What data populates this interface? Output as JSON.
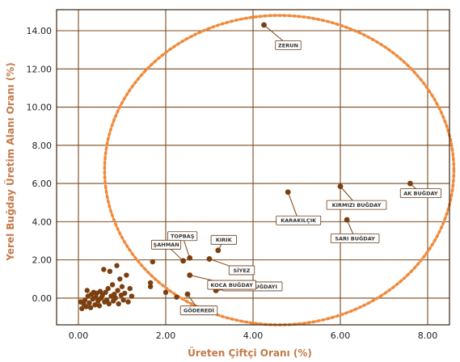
{
  "chart_data": {
    "type": "scatter",
    "title": "",
    "xlabel": "Üreten Çiftçi Oranı (%)",
    "ylabel": "Yerel Buğday Üretim Alanı Oranı (%)",
    "xlim": [
      -0.5,
      8.5
    ],
    "ylim": [
      -1.4,
      15.1
    ],
    "x_ticks": [
      0,
      2,
      4,
      6,
      8
    ],
    "x_tick_labels": [
      "0.00",
      "2.00",
      "4.00",
      "6.00",
      "8.00"
    ],
    "y_ticks": [
      0,
      2,
      4,
      6,
      8,
      10,
      12,
      14
    ],
    "y_tick_labels": [
      "0.00",
      "2.00",
      "4.00",
      "6.00",
      "8.00",
      "10.00",
      "12.00",
      "14.00"
    ],
    "grid": true,
    "colors": {
      "point": "#7b3f10",
      "grid": "#7b4a1e",
      "frame": "#3a2410",
      "ellipse": "#f08a3c",
      "axis_title": "#c47a4a"
    },
    "highlight_ellipse": {
      "center": [
        4.6,
        6.7
      ],
      "radius_x": 4.0,
      "radius_y": 8.1
    },
    "points": [
      {
        "x": 0.05,
        "y": -0.2
      },
      {
        "x": 0.08,
        "y": -0.55
      },
      {
        "x": 0.12,
        "y": -0.3
      },
      {
        "x": 0.15,
        "y": -0.1
      },
      {
        "x": 0.18,
        "y": -0.45
      },
      {
        "x": 0.2,
        "y": 0.4
      },
      {
        "x": 0.22,
        "y": 0.1
      },
      {
        "x": 0.25,
        "y": -0.25
      },
      {
        "x": 0.28,
        "y": -0.5
      },
      {
        "x": 0.3,
        "y": 0.2
      },
      {
        "x": 0.33,
        "y": -0.05
      },
      {
        "x": 0.35,
        "y": 0.3
      },
      {
        "x": 0.38,
        "y": -0.35
      },
      {
        "x": 0.4,
        "y": 0.05
      },
      {
        "x": 0.42,
        "y": 0.25
      },
      {
        "x": 0.45,
        "y": -0.15
      },
      {
        "x": 0.48,
        "y": -0.4
      },
      {
        "x": 0.5,
        "y": 0.35
      },
      {
        "x": 0.52,
        "y": 0.0
      },
      {
        "x": 0.55,
        "y": 0.15
      },
      {
        "x": 0.58,
        "y": 1.5
      },
      {
        "x": 0.6,
        "y": -0.2
      },
      {
        "x": 0.62,
        "y": 0.3
      },
      {
        "x": 0.65,
        "y": -0.1
      },
      {
        "x": 0.68,
        "y": 0.5
      },
      {
        "x": 0.7,
        "y": -0.3
      },
      {
        "x": 0.72,
        "y": 1.4
      },
      {
        "x": 0.75,
        "y": 0.1
      },
      {
        "x": 0.78,
        "y": 0.7
      },
      {
        "x": 0.8,
        "y": -0.15
      },
      {
        "x": 0.82,
        "y": 0.2
      },
      {
        "x": 0.85,
        "y": 0.0
      },
      {
        "x": 0.88,
        "y": 1.7
      },
      {
        "x": 0.9,
        "y": 0.4
      },
      {
        "x": 0.92,
        "y": -0.3
      },
      {
        "x": 0.95,
        "y": 1.0
      },
      {
        "x": 0.98,
        "y": 0.15
      },
      {
        "x": 1.0,
        "y": 0.6
      },
      {
        "x": 1.03,
        "y": -0.1
      },
      {
        "x": 1.06,
        "y": 0.25
      },
      {
        "x": 1.1,
        "y": 1.2
      },
      {
        "x": 1.14,
        "y": -0.2
      },
      {
        "x": 1.18,
        "y": 0.5
      },
      {
        "x": 1.22,
        "y": 0.1
      },
      {
        "x": 1.65,
        "y": 0.8
      },
      {
        "x": 1.65,
        "y": 0.6
      },
      {
        "x": 1.7,
        "y": 1.9
      },
      {
        "x": 2.0,
        "y": 0.3
      },
      {
        "x": 2.25,
        "y": 0.05
      }
    ],
    "labeled_points": [
      {
        "label": "ZERUN",
        "x": 4.25,
        "y": 14.3
      },
      {
        "label": "AK BUĞDAY",
        "x": 7.6,
        "y": 6.0
      },
      {
        "label": "KIRMIZI BUĞDAY",
        "x": 6.0,
        "y": 5.85
      },
      {
        "label": "KARAKILÇIK",
        "x": 4.8,
        "y": 5.55
      },
      {
        "label": "SARI BUĞDAY",
        "x": 6.15,
        "y": 4.1
      },
      {
        "label": "KIRIK",
        "x": 3.2,
        "y": 2.5
      },
      {
        "label": "TOPBAŞ",
        "x": 2.55,
        "y": 2.1
      },
      {
        "label": "ŞAHMAN",
        "x": 2.4,
        "y": 1.95
      },
      {
        "label": "SİYEZ",
        "x": 3.0,
        "y": 2.05
      },
      {
        "label": "ÜVEYIK BUĞDAYI",
        "x": 3.15,
        "y": 0.4
      },
      {
        "label": "KOCA BUĞDAY",
        "x": 2.55,
        "y": 1.2
      },
      {
        "label": "GÖDEREDİ",
        "x": 2.5,
        "y": 0.2
      }
    ]
  }
}
